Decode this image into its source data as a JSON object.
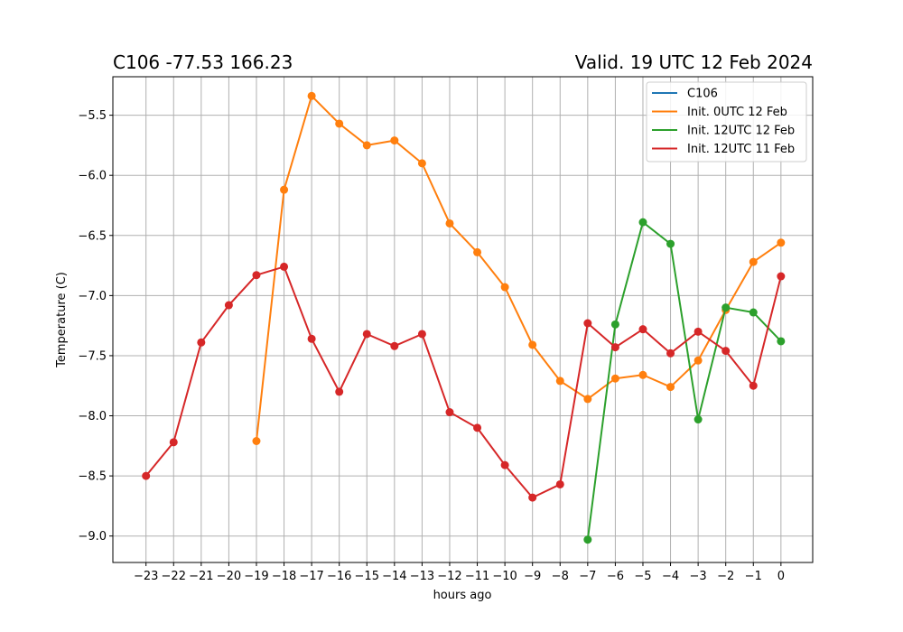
{
  "chart_data": {
    "type": "line",
    "title_left": "C106 -77.53 166.23",
    "title_right": "Valid. 19 UTC 12 Feb 2024",
    "xlabel": "hours ago",
    "ylabel": "Temperature (C)",
    "xlim": [
      -24.2,
      1.15
    ],
    "ylim": [
      -9.22,
      -5.18
    ],
    "xticks": [
      -23,
      -22,
      -21,
      -20,
      -19,
      -18,
      -17,
      -16,
      -15,
      -14,
      -13,
      -12,
      -11,
      -10,
      -9,
      -8,
      -7,
      -6,
      -5,
      -4,
      -3,
      -2,
      -1,
      0
    ],
    "xtick_labels": [
      "−23",
      "−22",
      "−21",
      "−20",
      "−19",
      "−18",
      "−17",
      "−16",
      "−15",
      "−14",
      "−13",
      "−12",
      "−11",
      "−10",
      "−9",
      "−8",
      "−7",
      "−6",
      "−5",
      "−4",
      "−3",
      "−2",
      "−1",
      "0"
    ],
    "yticks": [
      -9.0,
      -8.5,
      -8.0,
      -7.5,
      -7.0,
      -6.5,
      -6.0,
      -5.5
    ],
    "ytick_labels": [
      "−9.0",
      "−8.5",
      "−8.0",
      "−7.5",
      "−7.0",
      "−6.5",
      "−6.0",
      "−5.5"
    ],
    "grid": true,
    "legend_position": "top-right",
    "series": [
      {
        "name": "C106",
        "color": "#1f77b4",
        "x": [],
        "y": []
      },
      {
        "name": "Init. 0UTC 12 Feb",
        "color": "#ff7f0e",
        "x": [
          -19,
          -18,
          -17,
          -16,
          -15,
          -14,
          -13,
          -12,
          -11,
          -10,
          -9,
          -8,
          -7,
          -6,
          -5,
          -4,
          -3,
          -2,
          -1,
          0
        ],
        "y": [
          -8.21,
          -6.12,
          -5.34,
          -5.57,
          -5.75,
          -5.71,
          -5.9,
          -6.4,
          -6.64,
          -6.93,
          -7.41,
          -7.71,
          -7.86,
          -7.69,
          -7.66,
          -7.76,
          -7.54,
          -7.12,
          -6.72,
          -6.56
        ]
      },
      {
        "name": "Init. 12UTC 12 Feb",
        "color": "#2ca02c",
        "x": [
          -7,
          -6,
          -5,
          -4,
          -3,
          -2,
          -1,
          0
        ],
        "y": [
          -9.03,
          -7.24,
          -6.39,
          -6.57,
          -8.03,
          -7.1,
          -7.14,
          -7.38
        ]
      },
      {
        "name": "Init. 12UTC 11 Feb",
        "color": "#d62728",
        "x": [
          -23,
          -22,
          -21,
          -20,
          -19,
          -18,
          -17,
          -16,
          -15,
          -14,
          -13,
          -12,
          -11,
          -10,
          -9,
          -8,
          -7,
          -6,
          -5,
          -4,
          -3,
          -2,
          -1,
          0
        ],
        "y": [
          -8.5,
          -8.22,
          -7.39,
          -7.08,
          -6.83,
          -6.76,
          -7.36,
          -7.8,
          -7.32,
          -7.42,
          -7.32,
          -7.97,
          -8.1,
          -8.41,
          -8.68,
          -8.57,
          -7.23,
          -7.43,
          -7.28,
          -7.48,
          -7.3,
          -7.46,
          -7.75,
          -6.84
        ]
      }
    ]
  }
}
